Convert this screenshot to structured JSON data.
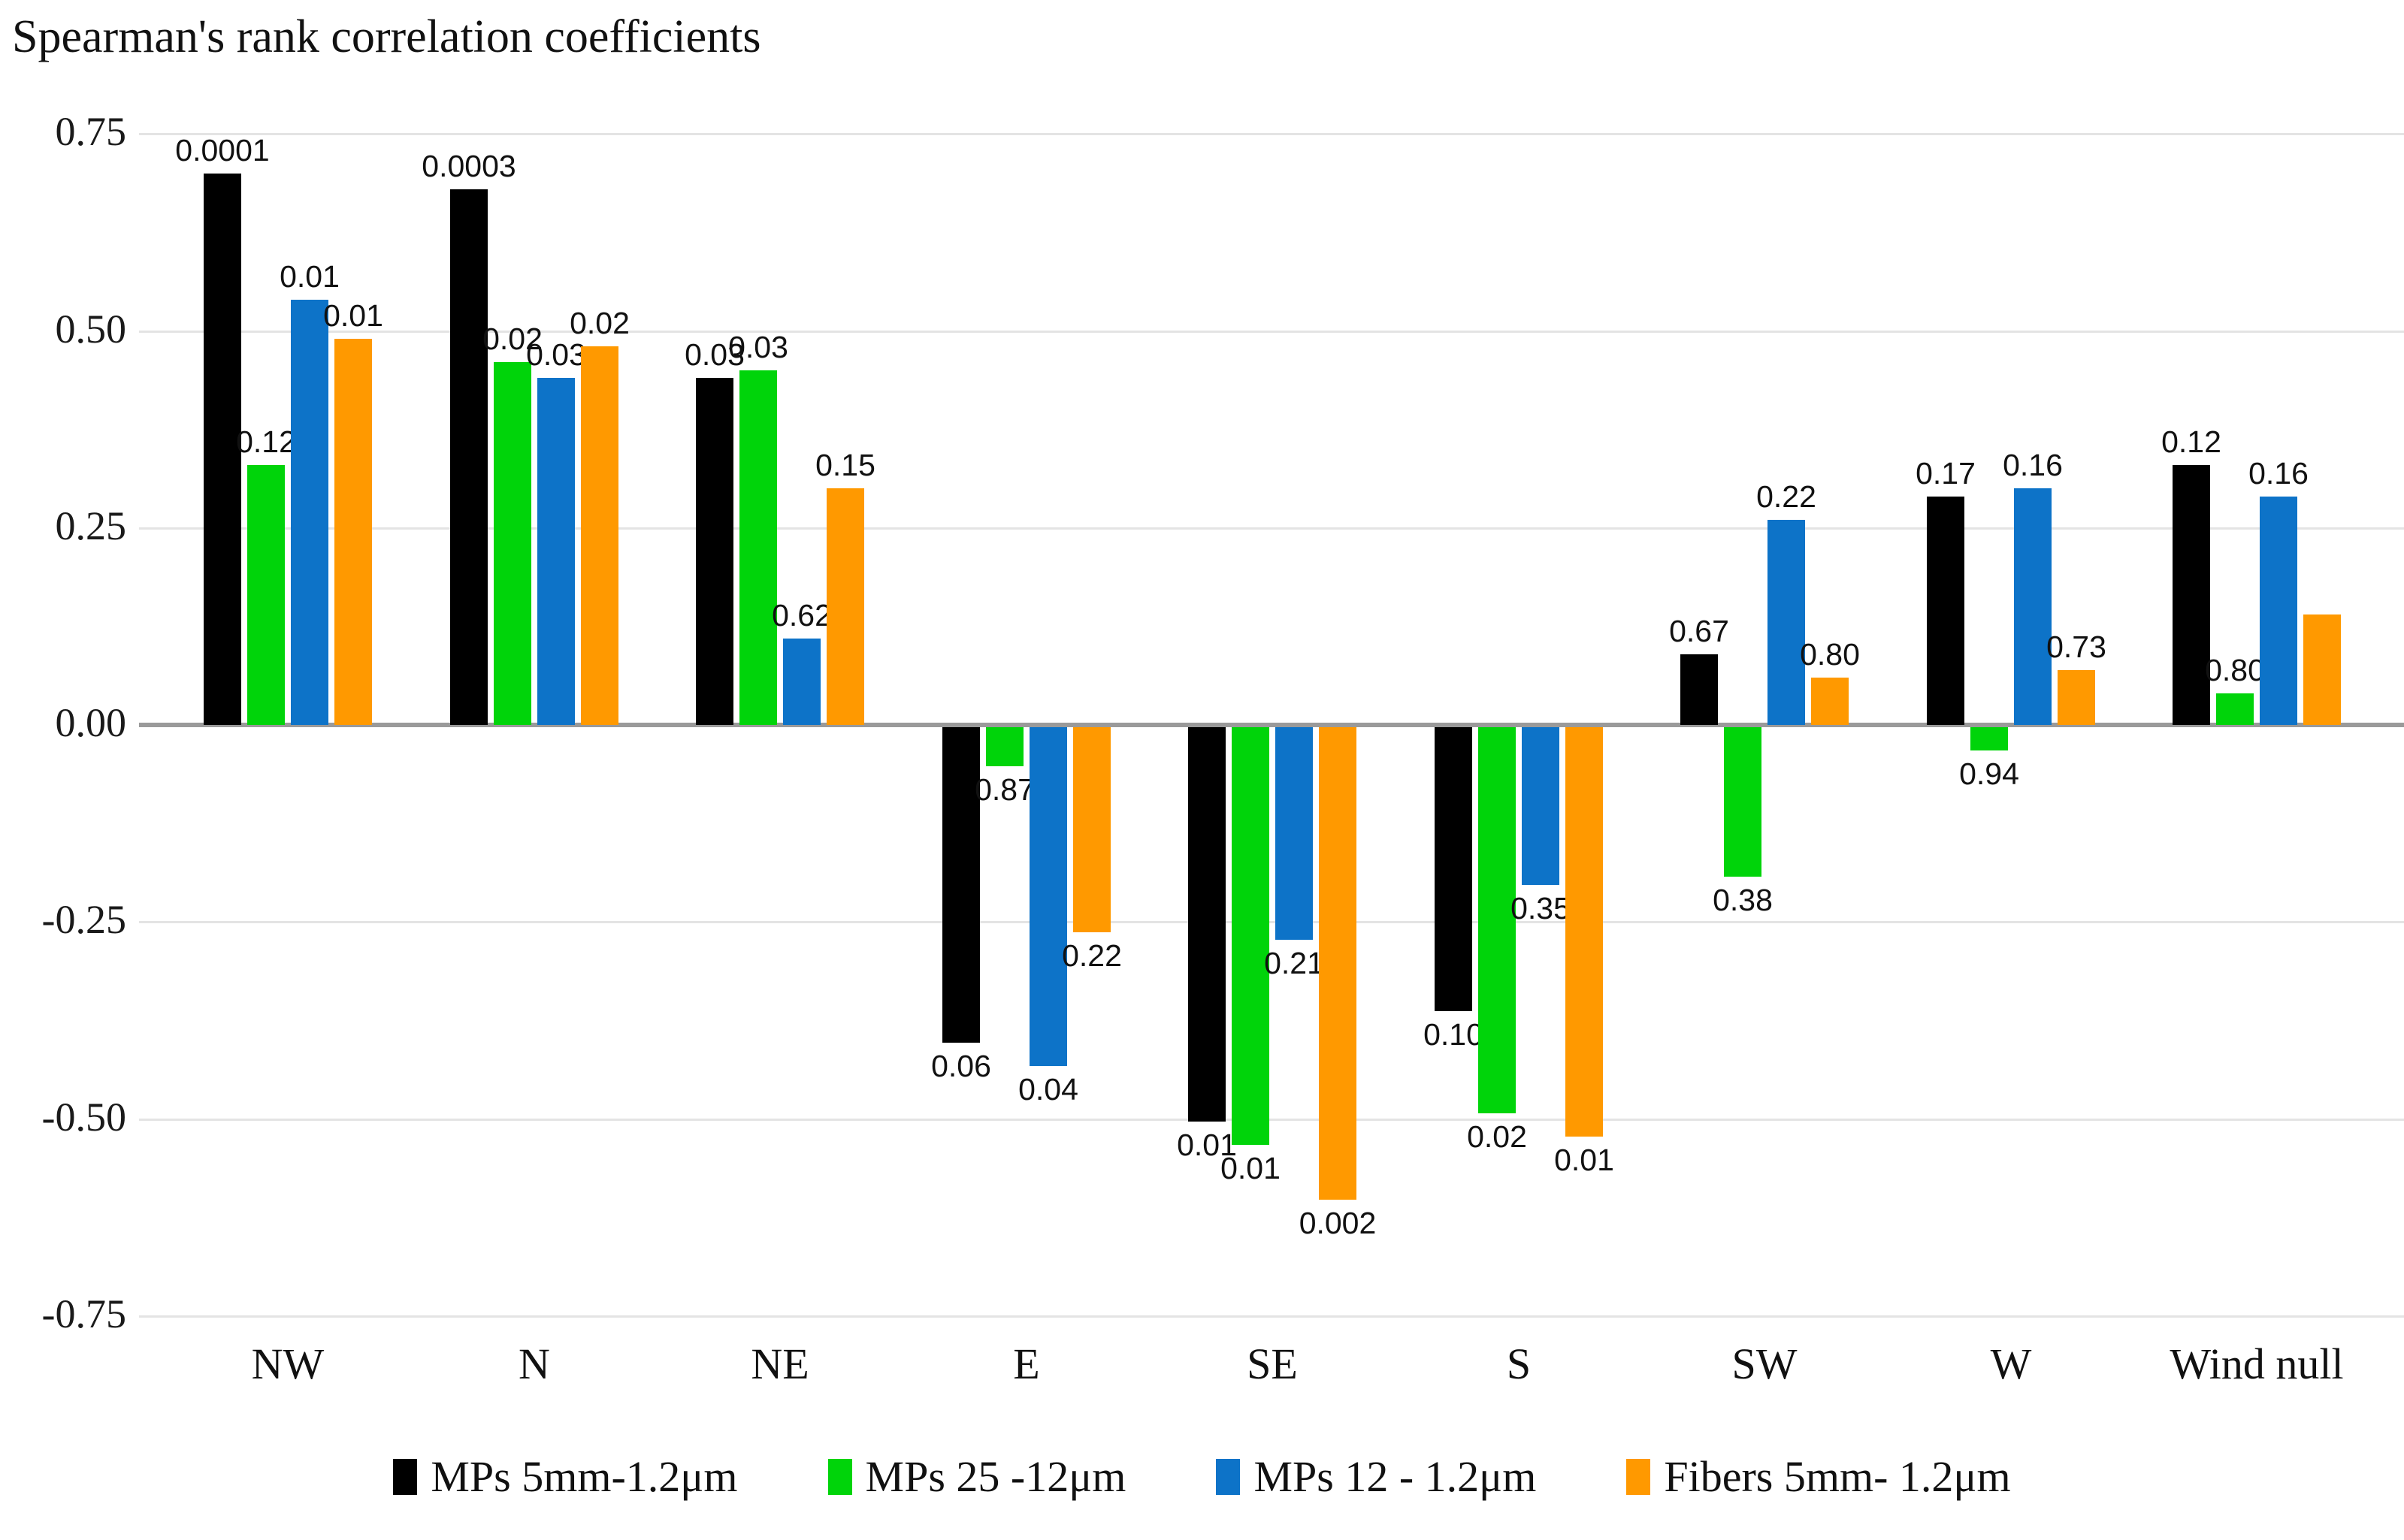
{
  "chart_data": {
    "type": "bar",
    "title": "Spearman's rank correlation coefficients",
    "categories": [
      "NW",
      "N",
      "NE",
      "E",
      "SE",
      "S",
      "SW",
      "W",
      "Wind null"
    ],
    "y_ticks": [
      "0.75",
      "0.50",
      "0.25",
      "0.00",
      "-0.25",
      "-0.50",
      "-0.75"
    ],
    "ylim": [
      -0.75,
      0.75
    ],
    "grid": true,
    "legend_position": "bottom",
    "series": [
      {
        "name": "MPs 5mm-1.2μm",
        "color": "#000000",
        "values": [
          0.7,
          0.68,
          0.44,
          -0.4,
          -0.5,
          -0.36,
          0.09,
          0.29,
          0.33
        ],
        "labels": [
          "0.0001",
          "0.0003",
          "0.03",
          "0.06",
          "0.01",
          "0.10",
          "0.67",
          "0.17",
          "0.12"
        ]
      },
      {
        "name": "MPs 25 -12μm",
        "color": "#00d40a",
        "values": [
          0.33,
          0.46,
          0.45,
          -0.05,
          -0.53,
          -0.49,
          -0.19,
          -0.03,
          0.04
        ],
        "labels": [
          "0.12",
          "0.02",
          "0.03",
          "0.87",
          "0.01",
          "0.02",
          "0.38",
          "0.94",
          "0.80"
        ]
      },
      {
        "name": "MPs 12 - 1.2μm",
        "color": "#0d73c8",
        "values": [
          0.54,
          0.44,
          0.11,
          -0.43,
          -0.27,
          -0.2,
          0.26,
          0.3,
          0.29
        ],
        "labels": [
          "0.01",
          "0.03",
          "0.62",
          "0.04",
          "0.21",
          "0.35",
          "0.22",
          "0.16",
          "0.16"
        ]
      },
      {
        "name": "Fibers 5mm- 1.2μm",
        "color": "#ff9900",
        "values": [
          0.49,
          0.48,
          0.3,
          -0.26,
          -0.6,
          -0.52,
          0.06,
          0.07,
          0.14
        ],
        "labels": [
          "0.01",
          "0.02",
          "0.15",
          "0.22",
          "0.002",
          "0.01",
          "0.80",
          "0.73",
          ""
        ]
      }
    ]
  }
}
